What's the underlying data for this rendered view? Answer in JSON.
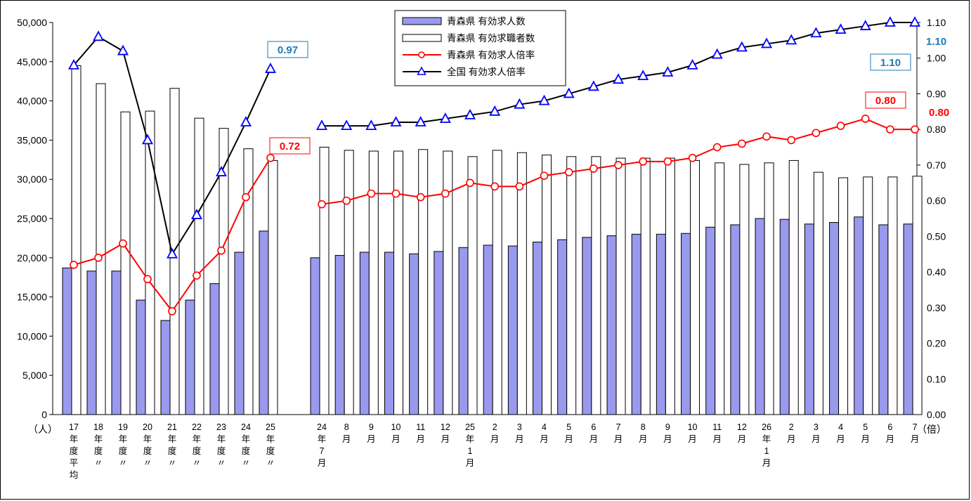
{
  "chart_data": {
    "type": "bar",
    "left_axis": {
      "min": 0,
      "max": 50000,
      "step": 5000,
      "unit_label": "（人）",
      "tick_labels": [
        "0",
        "5,000",
        "10,000",
        "15,000",
        "20,000",
        "25,000",
        "30,000",
        "35,000",
        "40,000",
        "45,000",
        "50,000"
      ]
    },
    "right_axis": {
      "min": 0,
      "max": 1.1,
      "step": 0.1,
      "unit_label": "（倍）",
      "tick_labels": [
        "0.00",
        "0.10",
        "0.20",
        "0.30",
        "0.40",
        "0.50",
        "0.60",
        "0.70",
        "0.80",
        "0.90",
        "1.00",
        "1.10"
      ]
    },
    "group_a": {
      "categories": [
        [
          "17",
          "年",
          "度",
          "平",
          "均"
        ],
        [
          "18",
          "年",
          "度",
          "〃"
        ],
        [
          "19",
          "年",
          "度",
          "〃"
        ],
        [
          "20",
          "年",
          "度",
          "〃"
        ],
        [
          "21",
          "年",
          "度",
          "〃"
        ],
        [
          "22",
          "年",
          "度",
          "〃"
        ],
        [
          "23",
          "年",
          "度",
          "〃"
        ],
        [
          "24",
          "年",
          "度",
          "〃"
        ],
        [
          "25",
          "年",
          "度",
          "〃"
        ]
      ],
      "offers": [
        18700,
        18300,
        18300,
        14600,
        12000,
        14600,
        16700,
        20700,
        23400
      ],
      "seekers": [
        44500,
        42200,
        38600,
        38700,
        41600,
        37800,
        36500,
        33900,
        32400
      ],
      "aomori_ratio": [
        0.42,
        0.44,
        0.48,
        0.38,
        0.29,
        0.39,
        0.46,
        0.61,
        0.72
      ],
      "national_ratio": [
        0.98,
        1.06,
        1.02,
        0.77,
        0.45,
        0.56,
        0.68,
        0.82,
        0.97
      ]
    },
    "group_b": {
      "categories": [
        [
          "24",
          "年",
          "7",
          "月"
        ],
        [
          "8",
          "月"
        ],
        [
          "9",
          "月"
        ],
        [
          "10",
          "月"
        ],
        [
          "11",
          "月"
        ],
        [
          "12",
          "月"
        ],
        [
          "25",
          "年",
          "1",
          "月"
        ],
        [
          "2",
          "月"
        ],
        [
          "3",
          "月"
        ],
        [
          "4",
          "月"
        ],
        [
          "5",
          "月"
        ],
        [
          "6",
          "月"
        ],
        [
          "7",
          "月"
        ],
        [
          "8",
          "月"
        ],
        [
          "9",
          "月"
        ],
        [
          "10",
          "月"
        ],
        [
          "11",
          "月"
        ],
        [
          "12",
          "月"
        ],
        [
          "26",
          "年",
          "1",
          "月"
        ],
        [
          "2",
          "月"
        ],
        [
          "3",
          "月"
        ],
        [
          "4",
          "月"
        ],
        [
          "5",
          "月"
        ],
        [
          "6",
          "月"
        ],
        [
          "7",
          "月"
        ]
      ],
      "offers": [
        20000,
        20300,
        20700,
        20700,
        20500,
        20800,
        21300,
        21600,
        21500,
        22000,
        22300,
        22600,
        22800,
        23000,
        23000,
        23100,
        23900,
        24200,
        25000,
        24900,
        24300,
        24500,
        25200,
        24200,
        24300
      ],
      "seekers": [
        34100,
        33700,
        33600,
        33600,
        33800,
        33600,
        32900,
        33700,
        33400,
        33100,
        32900,
        32900,
        32700,
        32700,
        32700,
        32400,
        32100,
        31900,
        32100,
        32400,
        30900,
        30200,
        30300,
        30300,
        30400
      ],
      "aomori_ratio": [
        0.59,
        0.6,
        0.62,
        0.62,
        0.61,
        0.62,
        0.65,
        0.64,
        0.64,
        0.67,
        0.68,
        0.69,
        0.7,
        0.71,
        0.71,
        0.72,
        0.75,
        0.76,
        0.78,
        0.77,
        0.79,
        0.81,
        0.83,
        0.8,
        0.8
      ],
      "national_ratio": [
        0.81,
        0.81,
        0.81,
        0.82,
        0.82,
        0.83,
        0.84,
        0.85,
        0.87,
        0.88,
        0.9,
        0.92,
        0.94,
        0.95,
        0.96,
        0.98,
        1.01,
        1.03,
        1.04,
        1.05,
        1.07,
        1.08,
        1.09,
        1.1,
        1.1
      ]
    },
    "series": [
      {
        "name": "青森県 有効求人数",
        "kind": "bar",
        "fill": "#9999ee",
        "stroke": "#000000"
      },
      {
        "name": "青森県 有効求職者数",
        "kind": "bar",
        "fill": "#ffffff",
        "stroke": "#000000"
      },
      {
        "name": "青森県 有効求人倍率",
        "kind": "line",
        "color": "#ff0000",
        "marker": "circle"
      },
      {
        "name": "全国 有効求人倍率",
        "kind": "line",
        "color": "#000000",
        "marker_color": "#0000ff",
        "marker": "triangle"
      }
    ],
    "legend_position": "top-center",
    "callouts": {
      "national_group_a": "0.97",
      "aomori_group_a": "0.72",
      "national_group_b": "1.10",
      "aomori_group_b": "0.80",
      "national_axis_side": "1.10",
      "aomori_axis_side": "0.80"
    },
    "colors": {
      "national_callout": "#1f7ab5",
      "aomori_callout": "#ff0000",
      "offers_bar": "#9999ee"
    }
  }
}
